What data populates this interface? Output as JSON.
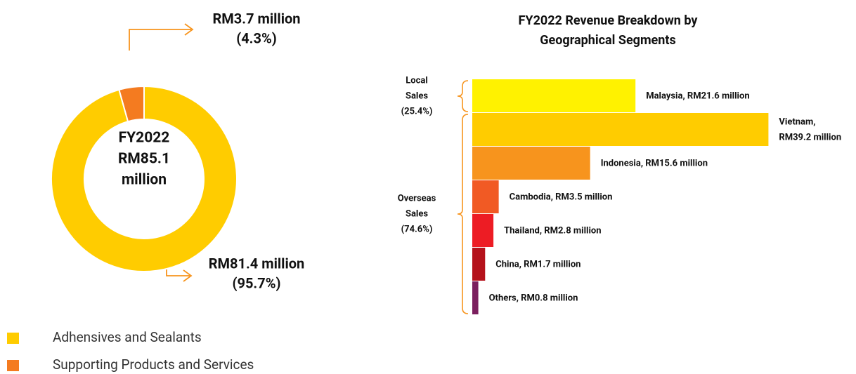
{
  "chart_data": [
    {
      "type": "donut",
      "categories": [
        "Adhensives and Sealants",
        "Supporting Products and Services"
      ],
      "values": [
        81.4,
        3.7
      ],
      "value_labels": [
        "RM81.4 million",
        "RM3.7 million"
      ],
      "shares": [
        95.7,
        4.3
      ],
      "share_labels": [
        "(95.7%)",
        "(4.3%)"
      ],
      "colors": [
        "#ffcc00",
        "#f47b20"
      ],
      "center_label": [
        "FY2022",
        "RM85.1",
        "million"
      ],
      "legend": true
    },
    {
      "type": "hbar",
      "title": [
        "FY2022 Revenue Breakdown by",
        "Geographical Segments"
      ],
      "values": [
        21.6,
        39.2,
        15.6,
        3.5,
        2.8,
        1.7,
        0.8
      ],
      "value_labels": [
        [
          "Malaysia, RM21.6 million"
        ],
        [
          "Vietnam,",
          "RM39.2 million"
        ],
        [
          "Indonesia, RM15.6 million"
        ],
        [
          "Cambodia, RM3.5 million"
        ],
        [
          "Thailand, RM2.8 million"
        ],
        [
          "China, RM1.7 million"
        ],
        [
          "Others, RM0.8 million"
        ]
      ],
      "colors": [
        "#fff200",
        "#ffcc00",
        "#f7941d",
        "#f15a24",
        "#ed1c24",
        "#b5121b",
        "#7b1f5e"
      ],
      "groups": [
        {
          "lines": [
            "Local",
            "Sales"
          ],
          "share": 25.4,
          "share_label": "(25.4%)"
        },
        {
          "lines": [
            "Overseas",
            "Sales"
          ],
          "share": 74.6,
          "share_label": "(74.6%)"
        }
      ]
    }
  ]
}
